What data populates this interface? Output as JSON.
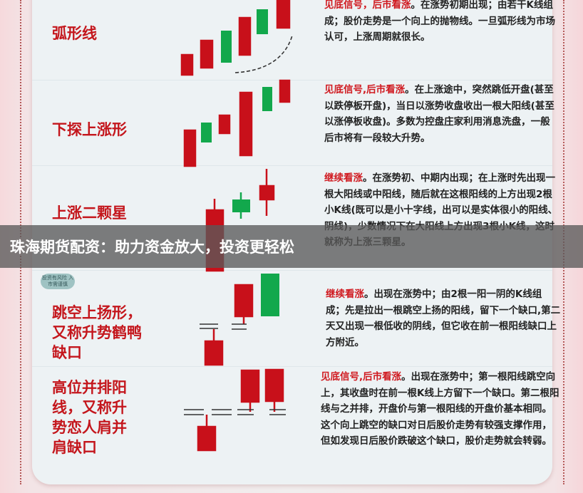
{
  "rows": [
    {
      "title": "弧形线",
      "highlight": "见底信号，后市看涨",
      "text": "。在涨势初期出现；由若干K线组成；股价走势是一个向上的抛物线。一旦弧形线为市场认可，上涨周期就很长。"
    },
    {
      "title": "下探上涨形",
      "highlight": "见底信号,后市看涨",
      "text": "。在上涨途中，突然跳低开盘(甚至以跌停板开盘)，当日以涨势收盘收出一根大阳线(甚至以涨停板收盘)。多数为控盘庄家利用消息洗盘，一般后市将有一段较大升势。"
    },
    {
      "title": "上涨二颗星",
      "highlight": "继续看涨",
      "text": "。在涨势初、中期内出现；在上涨时先出现一根大阳线或中阳线，随后就在这根阳线的上方出现2根小K线(既可以是小十字线，出可以是实体很小的阳线、阴线)，少数情况下在大阳线上方出现3根小K线，这时就称为上涨三颗星。"
    },
    {
      "title": "跳空上扬形，又称升势鹤鸭缺口",
      "highlight": "继续看涨",
      "text": "。出现在涨势中；由2根一阳一阴的K线组成；先是拉出一根跳空上扬的阳线，留下一个缺口,第二天又出现一根低收的阴线，但它收在前一根阳线缺口上方附近。"
    },
    {
      "title": "高位并排阳线，又称升势恋人肩并肩缺口",
      "highlight": "见底信号,后市看涨",
      "text": "。出现在涨势中；第一根阳线跳空向上，其收盘时在前一根K线上方留下一个缺口。第二根阳线与之并排，开盘价与第一根阳线的开盘价基本相同。这个向上跳空的缺口对日后股价走势有较强支撑作用，但如发现日后股价跌破这个缺口，股价走势就会转弱。"
    }
  ],
  "watermark": "投资有风险 入市需谨慎",
  "banner": "珠海期货配资：助力资金放大，投资更轻松",
  "colors": {
    "bullish_red": "#c8101a",
    "bearish_green": "#12a84c",
    "title_red": "#c4161c"
  }
}
